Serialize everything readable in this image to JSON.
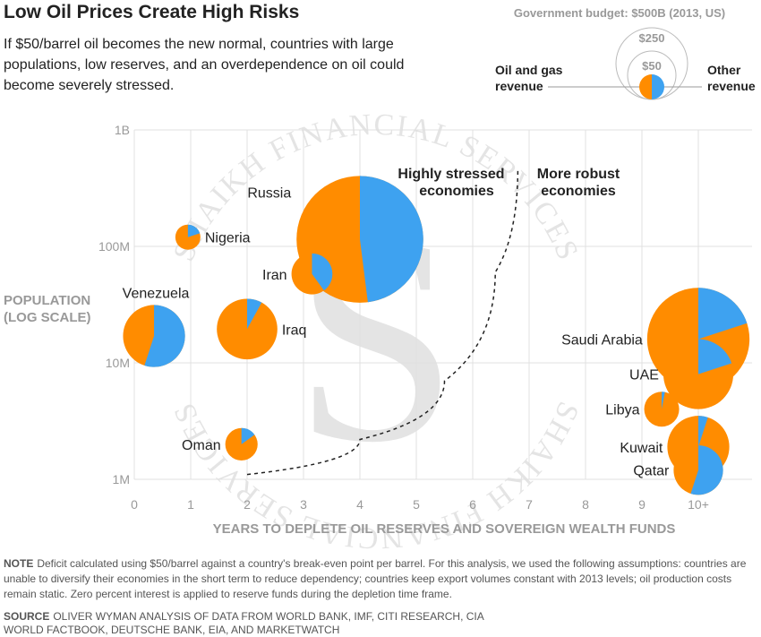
{
  "title": "Low Oil Prices Create High Risks",
  "subtitle": "If $50/barrel oil becomes the new normal, countries with large populations, low reserves, and an overdependence on oil could become severely stressed.",
  "legend": {
    "heading": "Government budget: $500B (2013, US)",
    "size_labels": [
      "$250",
      "$50"
    ],
    "left_label": [
      "Oil and gas",
      "revenue"
    ],
    "right_label": [
      "Other",
      "revenue"
    ]
  },
  "colors": {
    "oil_gas": "#FF8C00",
    "other": "#3EA2F0",
    "grid": "#e0e0e0",
    "axis_text": "#999999",
    "watermark": "#d9d9d9"
  },
  "annotations": {
    "stressed": [
      "Highly stressed",
      "economies"
    ],
    "robust": [
      "More robust",
      "economies"
    ]
  },
  "watermark": {
    "text": "SHAIKH FINANCIAL SERVICES",
    "monogram": "S"
  },
  "note": {
    "lead": "NOTE",
    "text": "Deficit calculated using $50/barrel against a country's break-even point per barrel. For this analysis, we used the following assumptions: countries are unable to diversify their economies in the short term to reduce dependency; countries keep export volumes constant with 2013 levels; oil production costs remain static. Zero percent interest is applied to reserve funds during the depletion time frame."
  },
  "source": {
    "lead": "SOURCE",
    "text": "OLIVER WYMAN ANALYSIS OF DATA FROM WORLD BANK, IMF, CITI RESEARCH, CIA WORLD FACTBOOK, DEUTSCHE BANK, EIA, AND MARKETWATCH"
  },
  "chart_data": {
    "type": "bubble-pie",
    "xlabel": "YEARS TO DEPLETE OIL RESERVES AND SOVEREIGN WEALTH FUNDS",
    "ylabel": [
      "POPULATION",
      "(LOG SCALE)"
    ],
    "xlim": [
      0,
      10.9
    ],
    "x_ticks": [
      0,
      1,
      2,
      3,
      4,
      5,
      6,
      7,
      8,
      9,
      10
    ],
    "x_tick_labels": [
      "0",
      "1",
      "2",
      "3",
      "4",
      "5",
      "6",
      "7",
      "8",
      "9",
      "10+"
    ],
    "ylim": [
      1000000,
      1000000000
    ],
    "y_scale": "log",
    "y_ticks": [
      1000000,
      10000000,
      100000000,
      1000000000
    ],
    "y_tick_labels": [
      "1M",
      "10M",
      "100M",
      "1B"
    ],
    "grid": true,
    "bubble_size": "government budget",
    "countries": [
      {
        "name": "Nigeria",
        "years": 0.95,
        "population": 120000000,
        "budget": 18,
        "oil_share": 0.8,
        "label_side": "right"
      },
      {
        "name": "Russia",
        "years": 4.0,
        "population": 115000000,
        "budget": 460,
        "oil_share": 0.52,
        "label_side": "left-top"
      },
      {
        "name": "Iran",
        "years": 3.15,
        "population": 58000000,
        "budget": 48,
        "oil_share": 0.6,
        "label_side": "left"
      },
      {
        "name": "Venezuela",
        "years": 0.35,
        "population": 17000000,
        "budget": 110,
        "oil_share": 0.45,
        "label_side": "above"
      },
      {
        "name": "Iraq",
        "years": 2.0,
        "population": 19500000,
        "budget": 105,
        "oil_share": 0.92,
        "label_side": "right"
      },
      {
        "name": "Oman",
        "years": 1.9,
        "population": 2000000,
        "budget": 30,
        "oil_share": 0.85,
        "label_side": "left"
      },
      {
        "name": "Saudi Arabia",
        "years": 10.0,
        "population": 16000000,
        "budget": 300,
        "oil_share": 0.8,
        "label_side": "left"
      },
      {
        "name": "UAE",
        "years": 10.0,
        "population": 8000000,
        "budget": 140,
        "oil_share": 0.8,
        "label_side": "left"
      },
      {
        "name": "Libya",
        "years": 9.35,
        "population": 4000000,
        "budget": 35,
        "oil_share": 0.97,
        "label_side": "left"
      },
      {
        "name": "Kuwait",
        "years": 10.0,
        "population": 1900000,
        "budget": 110,
        "oil_share": 0.95,
        "label_side": "left"
      },
      {
        "name": "Qatar",
        "years": 10.0,
        "population": 1200000,
        "budget": 70,
        "oil_share": 0.45,
        "label_side": "left"
      }
    ],
    "divider_curve": [
      [
        2.0,
        1100000
      ],
      [
        4.0,
        2200000
      ],
      [
        5.5,
        7000000
      ],
      [
        6.4,
        60000000
      ],
      [
        6.8,
        470000000
      ]
    ]
  }
}
